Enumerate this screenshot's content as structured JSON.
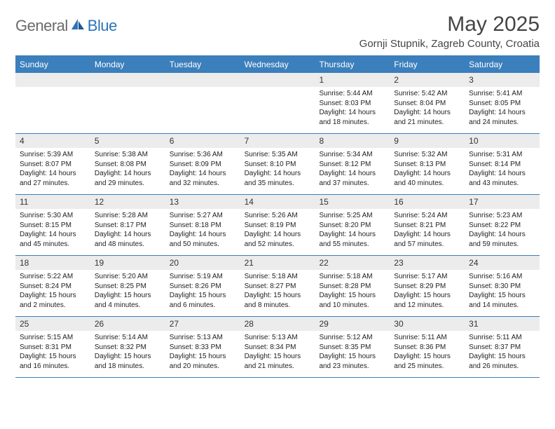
{
  "logo": {
    "text1": "General",
    "text2": "Blue"
  },
  "title": "May 2025",
  "location": "Gornji Stupnik, Zagreb County, Croatia",
  "colors": {
    "header_bg": "#3b7fbc",
    "header_fg": "#ffffff",
    "daynum_bg": "#ececec",
    "text": "#222222",
    "logo_gray": "#6a6a6a",
    "logo_blue": "#2b74b8"
  },
  "weekdays": [
    "Sunday",
    "Monday",
    "Tuesday",
    "Wednesday",
    "Thursday",
    "Friday",
    "Saturday"
  ],
  "weeks": [
    [
      {
        "n": "",
        "sr": "",
        "ss": "",
        "dl": ""
      },
      {
        "n": "",
        "sr": "",
        "ss": "",
        "dl": ""
      },
      {
        "n": "",
        "sr": "",
        "ss": "",
        "dl": ""
      },
      {
        "n": "",
        "sr": "",
        "ss": "",
        "dl": ""
      },
      {
        "n": "1",
        "sr": "Sunrise: 5:44 AM",
        "ss": "Sunset: 8:03 PM",
        "dl": "Daylight: 14 hours and 18 minutes."
      },
      {
        "n": "2",
        "sr": "Sunrise: 5:42 AM",
        "ss": "Sunset: 8:04 PM",
        "dl": "Daylight: 14 hours and 21 minutes."
      },
      {
        "n": "3",
        "sr": "Sunrise: 5:41 AM",
        "ss": "Sunset: 8:05 PM",
        "dl": "Daylight: 14 hours and 24 minutes."
      }
    ],
    [
      {
        "n": "4",
        "sr": "Sunrise: 5:39 AM",
        "ss": "Sunset: 8:07 PM",
        "dl": "Daylight: 14 hours and 27 minutes."
      },
      {
        "n": "5",
        "sr": "Sunrise: 5:38 AM",
        "ss": "Sunset: 8:08 PM",
        "dl": "Daylight: 14 hours and 29 minutes."
      },
      {
        "n": "6",
        "sr": "Sunrise: 5:36 AM",
        "ss": "Sunset: 8:09 PM",
        "dl": "Daylight: 14 hours and 32 minutes."
      },
      {
        "n": "7",
        "sr": "Sunrise: 5:35 AM",
        "ss": "Sunset: 8:10 PM",
        "dl": "Daylight: 14 hours and 35 minutes."
      },
      {
        "n": "8",
        "sr": "Sunrise: 5:34 AM",
        "ss": "Sunset: 8:12 PM",
        "dl": "Daylight: 14 hours and 37 minutes."
      },
      {
        "n": "9",
        "sr": "Sunrise: 5:32 AM",
        "ss": "Sunset: 8:13 PM",
        "dl": "Daylight: 14 hours and 40 minutes."
      },
      {
        "n": "10",
        "sr": "Sunrise: 5:31 AM",
        "ss": "Sunset: 8:14 PM",
        "dl": "Daylight: 14 hours and 43 minutes."
      }
    ],
    [
      {
        "n": "11",
        "sr": "Sunrise: 5:30 AM",
        "ss": "Sunset: 8:15 PM",
        "dl": "Daylight: 14 hours and 45 minutes."
      },
      {
        "n": "12",
        "sr": "Sunrise: 5:28 AM",
        "ss": "Sunset: 8:17 PM",
        "dl": "Daylight: 14 hours and 48 minutes."
      },
      {
        "n": "13",
        "sr": "Sunrise: 5:27 AM",
        "ss": "Sunset: 8:18 PM",
        "dl": "Daylight: 14 hours and 50 minutes."
      },
      {
        "n": "14",
        "sr": "Sunrise: 5:26 AM",
        "ss": "Sunset: 8:19 PM",
        "dl": "Daylight: 14 hours and 52 minutes."
      },
      {
        "n": "15",
        "sr": "Sunrise: 5:25 AM",
        "ss": "Sunset: 8:20 PM",
        "dl": "Daylight: 14 hours and 55 minutes."
      },
      {
        "n": "16",
        "sr": "Sunrise: 5:24 AM",
        "ss": "Sunset: 8:21 PM",
        "dl": "Daylight: 14 hours and 57 minutes."
      },
      {
        "n": "17",
        "sr": "Sunrise: 5:23 AM",
        "ss": "Sunset: 8:22 PM",
        "dl": "Daylight: 14 hours and 59 minutes."
      }
    ],
    [
      {
        "n": "18",
        "sr": "Sunrise: 5:22 AM",
        "ss": "Sunset: 8:24 PM",
        "dl": "Daylight: 15 hours and 2 minutes."
      },
      {
        "n": "19",
        "sr": "Sunrise: 5:20 AM",
        "ss": "Sunset: 8:25 PM",
        "dl": "Daylight: 15 hours and 4 minutes."
      },
      {
        "n": "20",
        "sr": "Sunrise: 5:19 AM",
        "ss": "Sunset: 8:26 PM",
        "dl": "Daylight: 15 hours and 6 minutes."
      },
      {
        "n": "21",
        "sr": "Sunrise: 5:18 AM",
        "ss": "Sunset: 8:27 PM",
        "dl": "Daylight: 15 hours and 8 minutes."
      },
      {
        "n": "22",
        "sr": "Sunrise: 5:18 AM",
        "ss": "Sunset: 8:28 PM",
        "dl": "Daylight: 15 hours and 10 minutes."
      },
      {
        "n": "23",
        "sr": "Sunrise: 5:17 AM",
        "ss": "Sunset: 8:29 PM",
        "dl": "Daylight: 15 hours and 12 minutes."
      },
      {
        "n": "24",
        "sr": "Sunrise: 5:16 AM",
        "ss": "Sunset: 8:30 PM",
        "dl": "Daylight: 15 hours and 14 minutes."
      }
    ],
    [
      {
        "n": "25",
        "sr": "Sunrise: 5:15 AM",
        "ss": "Sunset: 8:31 PM",
        "dl": "Daylight: 15 hours and 16 minutes."
      },
      {
        "n": "26",
        "sr": "Sunrise: 5:14 AM",
        "ss": "Sunset: 8:32 PM",
        "dl": "Daylight: 15 hours and 18 minutes."
      },
      {
        "n": "27",
        "sr": "Sunrise: 5:13 AM",
        "ss": "Sunset: 8:33 PM",
        "dl": "Daylight: 15 hours and 20 minutes."
      },
      {
        "n": "28",
        "sr": "Sunrise: 5:13 AM",
        "ss": "Sunset: 8:34 PM",
        "dl": "Daylight: 15 hours and 21 minutes."
      },
      {
        "n": "29",
        "sr": "Sunrise: 5:12 AM",
        "ss": "Sunset: 8:35 PM",
        "dl": "Daylight: 15 hours and 23 minutes."
      },
      {
        "n": "30",
        "sr": "Sunrise: 5:11 AM",
        "ss": "Sunset: 8:36 PM",
        "dl": "Daylight: 15 hours and 25 minutes."
      },
      {
        "n": "31",
        "sr": "Sunrise: 5:11 AM",
        "ss": "Sunset: 8:37 PM",
        "dl": "Daylight: 15 hours and 26 minutes."
      }
    ]
  ]
}
